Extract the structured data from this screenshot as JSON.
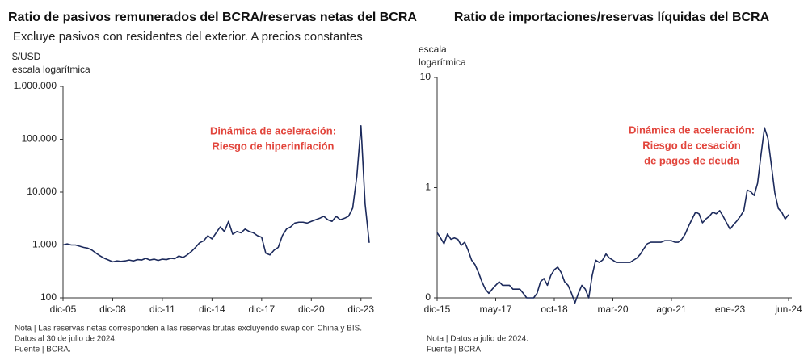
{
  "chart_data": [
    {
      "type": "line",
      "title": "Ratio de pasivos remunerados del BCRA/reservas netas del BCRA",
      "subtitle": "Excluye pasivos con residentes del exterior. A precios constantes",
      "y_label_lines": [
        "$/USD",
        "escala logarítmica"
      ],
      "annotation_lines": [
        "Dinámica de aceleración:",
        "Riesgo de hiperinflación"
      ],
      "annotation_color": "#e2453c",
      "notes": [
        "Nota | Las reservas netas corresponden a las reservas brutas excluyendo swap con China y BIS.",
        "Datos al 30 de julio de 2024.",
        "Fuente | BCRA."
      ],
      "log_scale": true,
      "ylim": [
        100,
        1000000
      ],
      "yticks": [
        100,
        {
          "value": 1000,
          "label": "1.000"
        },
        {
          "value": 10000,
          "label": "10.000"
        },
        {
          "value": 100000,
          "label": "100.000"
        },
        {
          "value": 1000000,
          "label": "1.000.000"
        }
      ],
      "categories": [
        "dic-05",
        null,
        null,
        null,
        null,
        null,
        null,
        null,
        null,
        null,
        null,
        null,
        "dic-08",
        null,
        null,
        null,
        null,
        null,
        null,
        null,
        null,
        null,
        null,
        null,
        "dic-11",
        null,
        null,
        null,
        null,
        null,
        null,
        null,
        null,
        null,
        null,
        null,
        "dic-14",
        null,
        null,
        null,
        null,
        null,
        null,
        null,
        null,
        null,
        null,
        null,
        "dic-17",
        null,
        null,
        null,
        null,
        null,
        null,
        null,
        null,
        null,
        null,
        null,
        "dic-20",
        null,
        null,
        null,
        null,
        null,
        null,
        null,
        null,
        null,
        null,
        null,
        "dic-23",
        null,
        null
      ],
      "color": "#1c2a5c",
      "values": [
        1000,
        1050,
        1000,
        1000,
        950,
        900,
        870,
        800,
        700,
        620,
        560,
        520,
        480,
        500,
        490,
        500,
        520,
        500,
        530,
        520,
        560,
        520,
        540,
        510,
        540,
        530,
        560,
        550,
        620,
        580,
        650,
        750,
        900,
        1100,
        1200,
        1500,
        1300,
        1700,
        2200,
        1800,
        2800,
        1600,
        1800,
        1700,
        2000,
        1800,
        1700,
        1500,
        1400,
        700,
        650,
        800,
        900,
        1500,
        2000,
        2200,
        2600,
        2700,
        2700,
        2600,
        2800,
        3000,
        3200,
        3500,
        3000,
        2800,
        3500,
        3000,
        3200,
        3500,
        5000,
        20000,
        180000,
        6000,
        1100
      ]
    },
    {
      "type": "line",
      "title": "Ratio de importaciones/reservas líquidas del BCRA",
      "y_label_lines": [
        "escala",
        "logarítmica"
      ],
      "annotation_lines": [
        "Dinámica de aceleración:",
        "Riesgo de cesación",
        "de pagos de deuda"
      ],
      "annotation_color": "#e2453c",
      "notes": [
        "Nota | Datos a julio de 2024.",
        "Fuente | BCRA."
      ],
      "log_scale": true,
      "ylim": [
        0.1,
        10
      ],
      "yticks": [
        {
          "value": 0.1,
          "label": "0"
        },
        1,
        10
      ],
      "categories": [
        "dic-15",
        null,
        null,
        null,
        null,
        null,
        null,
        null,
        null,
        null,
        null,
        null,
        null,
        null,
        null,
        null,
        null,
        "may-17",
        null,
        null,
        null,
        null,
        null,
        null,
        null,
        null,
        null,
        null,
        null,
        null,
        null,
        null,
        null,
        null,
        "oct-18",
        null,
        null,
        null,
        null,
        null,
        null,
        null,
        null,
        null,
        null,
        null,
        null,
        null,
        null,
        null,
        null,
        "mar-20",
        null,
        null,
        null,
        null,
        null,
        null,
        null,
        null,
        null,
        null,
        null,
        null,
        null,
        null,
        null,
        null,
        "ago-21",
        null,
        null,
        null,
        null,
        null,
        null,
        null,
        null,
        null,
        null,
        null,
        null,
        null,
        null,
        null,
        null,
        "ene-23",
        null,
        null,
        null,
        null,
        null,
        null,
        null,
        null,
        null,
        null,
        null,
        null,
        null,
        null,
        null,
        null,
        "jun-24"
      ],
      "color": "#1c2a5c",
      "values": [
        0.39,
        0.35,
        0.31,
        0.38,
        0.34,
        0.35,
        0.34,
        0.3,
        0.32,
        0.27,
        0.22,
        0.2,
        0.17,
        0.14,
        0.12,
        0.11,
        0.12,
        0.13,
        0.14,
        0.13,
        0.13,
        0.13,
        0.12,
        0.12,
        0.12,
        0.11,
        0.1,
        0.1,
        0.1,
        0.11,
        0.14,
        0.15,
        0.13,
        0.16,
        0.18,
        0.19,
        0.17,
        0.14,
        0.13,
        0.11,
        0.09,
        0.11,
        0.13,
        0.12,
        0.1,
        0.16,
        0.22,
        0.21,
        0.22,
        0.25,
        0.23,
        0.22,
        0.21,
        0.21,
        0.21,
        0.21,
        0.21,
        0.22,
        0.23,
        0.25,
        0.28,
        0.31,
        0.32,
        0.32,
        0.32,
        0.32,
        0.33,
        0.33,
        0.33,
        0.32,
        0.32,
        0.34,
        0.38,
        0.45,
        0.52,
        0.6,
        0.58,
        0.48,
        0.52,
        0.55,
        0.6,
        0.58,
        0.62,
        0.55,
        0.48,
        0.42,
        0.46,
        0.5,
        0.55,
        0.62,
        0.95,
        0.92,
        0.85,
        1.1,
        2.0,
        3.5,
        2.8,
        1.6,
        0.9,
        0.65,
        0.6,
        0.52,
        0.57
      ]
    }
  ]
}
